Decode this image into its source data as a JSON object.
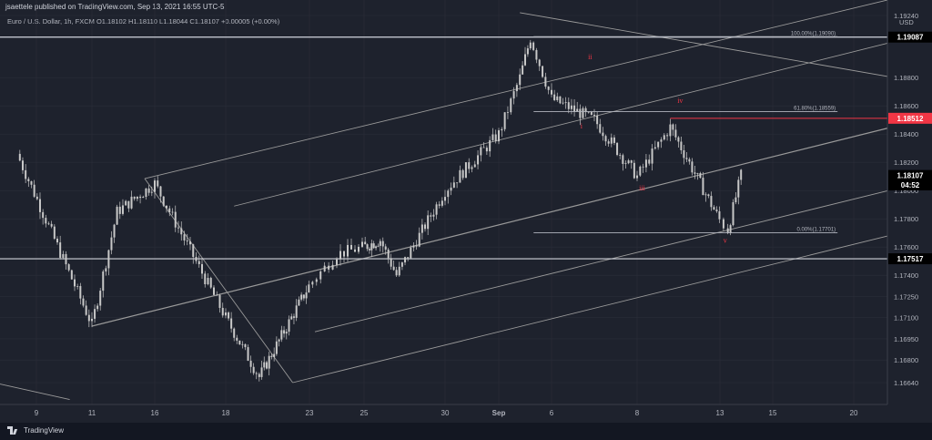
{
  "header": {
    "published": "jsaettele published on TradingView.com, Sep 13, 2021 16:55 UTC-5",
    "symbol_line": "Euro / U.S. Dollar, 1h, FXCM  O1.18102  H1.18110  L1.18044  C1.18107  +0.00005 (+0.00%)"
  },
  "footer": {
    "brand": "TradingView"
  },
  "colors": {
    "background": "#1e222d",
    "grid": "#2a2e39",
    "candle": "#c8c8c8",
    "line": "#9a9a9a",
    "wave_label": "#f23645",
    "badge_dark": "#000000",
    "badge_red": "#f23645",
    "circle": "#000000"
  },
  "chart_data": {
    "type": "candlestick",
    "y_axis_unit": "USD",
    "y_ticks": [
      "1.19240",
      "1.19090",
      "1.18800",
      "1.18600",
      "1.18400",
      "1.18200",
      "1.18000",
      "1.17800",
      "1.17600",
      "1.17400",
      "1.17250",
      "1.17100",
      "1.16950",
      "1.16800",
      "1.16640"
    ],
    "x_ticks": [
      "9",
      "11",
      "16",
      "18",
      "23",
      "25",
      "30",
      "Sep",
      "6",
      "8",
      "13",
      "15",
      "20"
    ],
    "price_badges": [
      {
        "label": "1.19087",
        "price": 1.19087,
        "style": "dark"
      },
      {
        "label": "1.18512",
        "price": 1.18512,
        "style": "red"
      },
      {
        "label": "1.18107",
        "price": 1.18107,
        "style": "dark"
      },
      {
        "label": "04:52",
        "price": 1.1804,
        "style": "dark"
      },
      {
        "label": "1.17517",
        "price": 1.17517,
        "style": "dark"
      }
    ],
    "horizontal_levels": [
      {
        "name": "ten-day-high",
        "price": 1.19087
      },
      {
        "name": "support-level",
        "price": 1.17517
      }
    ],
    "fibonacci": {
      "levels": [
        {
          "label": "100.00%(1.19090)",
          "price": 1.1909
        },
        {
          "label": "61.80%(1.18559)",
          "price": 1.18559
        },
        {
          "label": "0.00%(1.17701)",
          "price": 1.17701
        }
      ]
    },
    "target_level": {
      "label": "1.18512",
      "price": 1.18512
    },
    "wave_labels": [
      {
        "text": "i",
        "date": "Sep 6",
        "price": 1.1844
      },
      {
        "text": "ii",
        "date": "Sep 6",
        "price": 1.1893
      },
      {
        "text": "iii",
        "date": "Sep 8",
        "price": 1.18
      },
      {
        "text": "iv",
        "date": "Sep 10",
        "price": 1.1862
      },
      {
        "text": "v",
        "date": "Sep 13",
        "price": 1.1763
      }
    ],
    "ohlc_last": {
      "open": 1.18102,
      "high": 1.1811,
      "low": 1.18044,
      "close": 1.18107,
      "change": "+0.00005 (+0.00%)"
    },
    "anchor_prices": [
      {
        "date": "Aug 9",
        "price": 1.1826
      },
      {
        "date": "Aug 11",
        "price": 1.1705
      },
      {
        "date": "Aug 13",
        "price": 1.1785
      },
      {
        "date": "Aug 16",
        "price": 1.1805
      },
      {
        "date": "Aug 18",
        "price": 1.171
      },
      {
        "date": "Aug 20",
        "price": 1.1668
      },
      {
        "date": "Aug 24",
        "price": 1.1755
      },
      {
        "date": "Aug 26",
        "price": 1.1765
      },
      {
        "date": "Aug 27",
        "price": 1.174
      },
      {
        "date": "Aug 30",
        "price": 1.18
      },
      {
        "date": "Sep 1",
        "price": 1.184
      },
      {
        "date": "Sep 3",
        "price": 1.188
      },
      {
        "date": "Sep 4",
        "price": 1.1908
      },
      {
        "date": "Sep 6",
        "price": 1.1865
      },
      {
        "date": "Sep 7",
        "price": 1.185
      },
      {
        "date": "Sep 8",
        "price": 1.181
      },
      {
        "date": "Sep 10",
        "price": 1.1845
      },
      {
        "date": "Sep 13",
        "price": 1.1772
      },
      {
        "date": "Sep 13",
        "price": 1.1811
      }
    ]
  }
}
